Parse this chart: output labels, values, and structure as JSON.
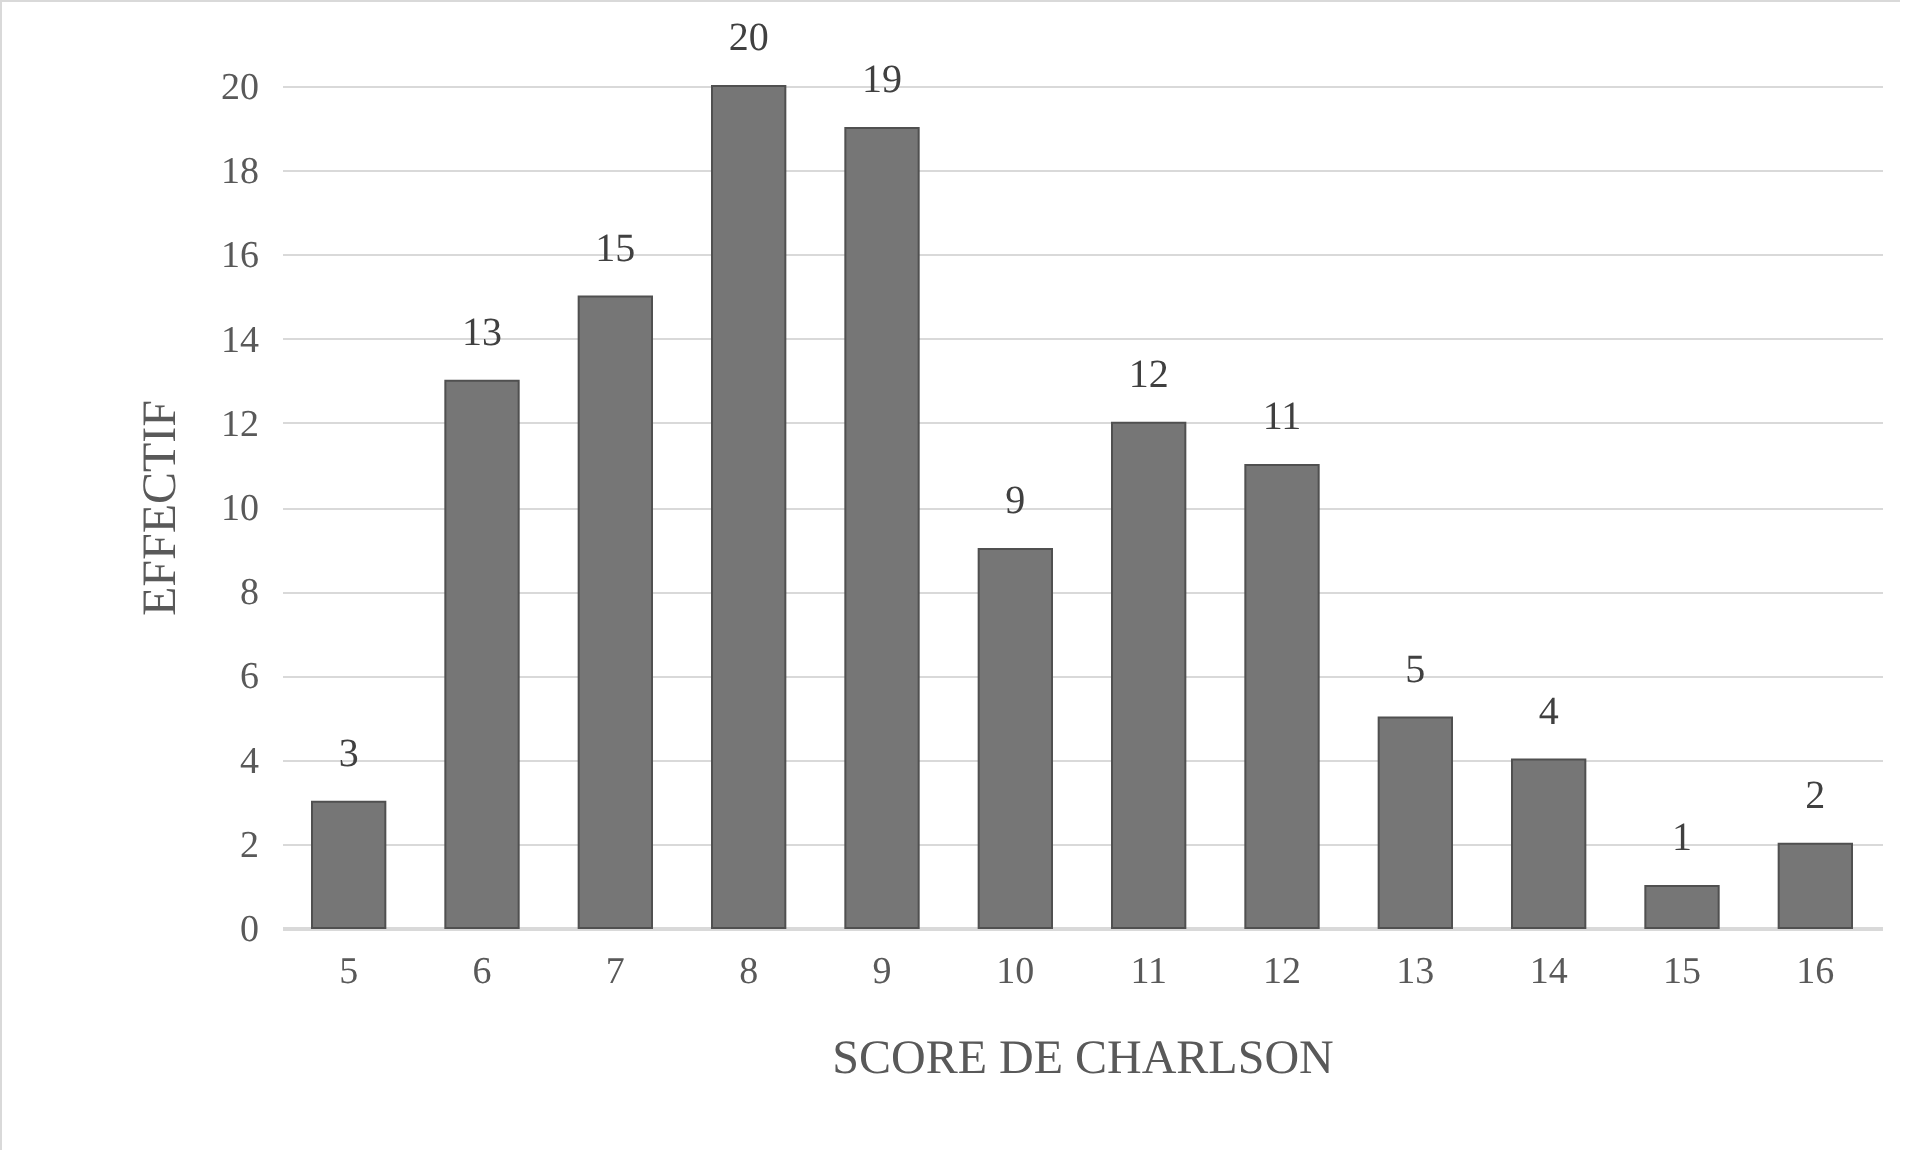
{
  "chart_data": {
    "type": "bar",
    "xlabel": "SCORE DE CHARLSON",
    "ylabel": "EFFECTIF",
    "categories": [
      "5",
      "6",
      "7",
      "8",
      "9",
      "10",
      "11",
      "12",
      "13",
      "14",
      "15",
      "16"
    ],
    "values": [
      3,
      13,
      15,
      20,
      19,
      9,
      12,
      11,
      5,
      4,
      1,
      2
    ],
    "color": "#767676",
    "ylim": [
      0,
      20
    ],
    "yticks": [
      0,
      2,
      4,
      6,
      8,
      10,
      12,
      14,
      16,
      18,
      20
    ],
    "grid": "y",
    "data_labels": true
  }
}
